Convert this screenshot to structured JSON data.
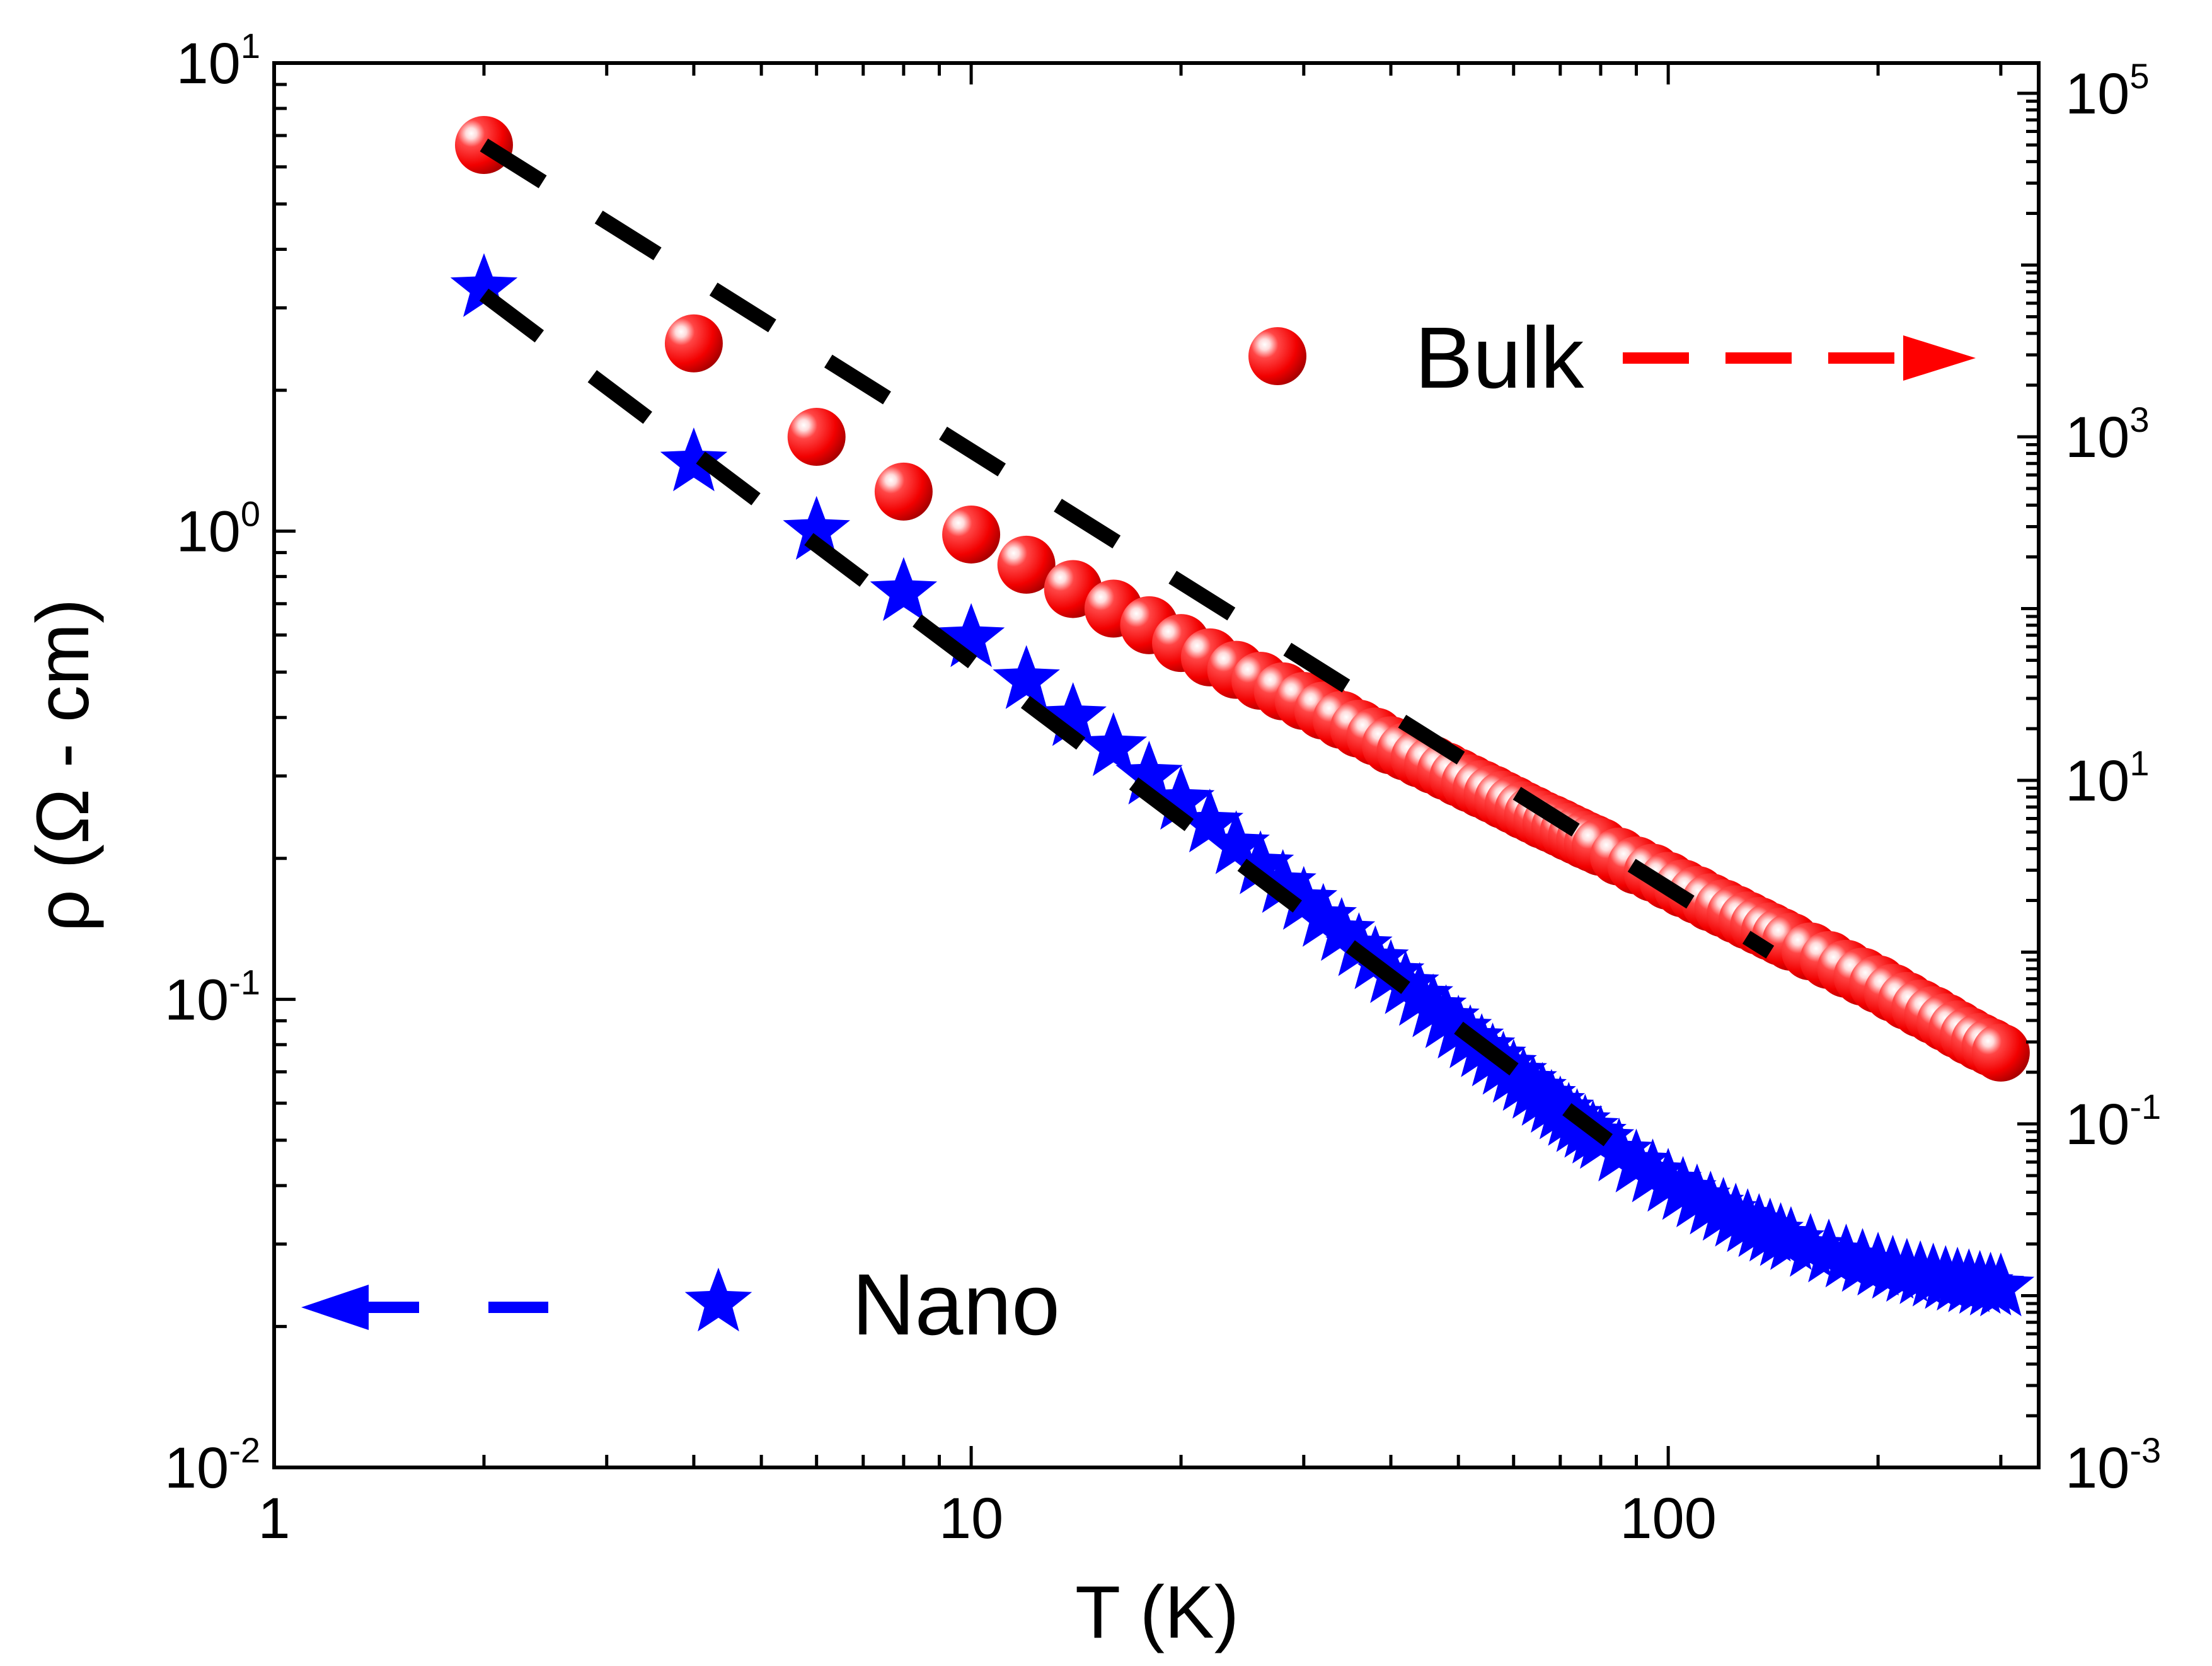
{
  "chart_data": {
    "type": "scatter",
    "xlabel": "T (K)",
    "ylabel_left": "ρ (Ω - cm)",
    "ylabel_right": "",
    "xscale": "log",
    "yscale_left": "log",
    "yscale_right": "log",
    "xlim": [
      1,
      340
    ],
    "ylim_left": [
      0.01,
      10
    ],
    "ylim_right": [
      0.001,
      150000
    ],
    "x_ticks": [
      {
        "value": 1,
        "label": "1"
      },
      {
        "value": 10,
        "label": "10"
      },
      {
        "value": 100,
        "label": "100"
      }
    ],
    "y_left_ticks": [
      {
        "value": 10,
        "base": "10",
        "exp": "1"
      },
      {
        "value": 1,
        "base": "10",
        "exp": "0"
      },
      {
        "value": 0.1,
        "base": "10",
        "exp": "-1"
      },
      {
        "value": 0.01,
        "base": "10",
        "exp": "-2"
      }
    ],
    "y_right_ticks": [
      {
        "value": 100000,
        "base": "10",
        "exp": "5"
      },
      {
        "value": 1000,
        "base": "10",
        "exp": "3"
      },
      {
        "value": 10,
        "base": "10",
        "exp": "1"
      },
      {
        "value": 0.1,
        "base": "10",
        "exp": "-1"
      },
      {
        "value": 0.001,
        "base": "10",
        "exp": "-3"
      }
    ],
    "series": [
      {
        "name": "Bulk",
        "axis": "right",
        "marker": "sphere",
        "color": "#ff0000",
        "x": [
          2,
          4,
          6,
          8,
          10,
          12,
          14,
          16,
          18,
          20,
          22,
          24,
          26,
          28,
          30,
          32,
          34,
          36,
          38,
          40,
          42,
          44,
          46,
          48,
          50,
          52,
          54,
          56,
          58,
          60,
          62,
          64,
          66,
          68,
          70,
          72,
          74,
          76,
          78,
          80,
          85,
          90,
          95,
          100,
          105,
          110,
          115,
          120,
          125,
          130,
          135,
          140,
          145,
          150,
          160,
          170,
          180,
          190,
          200,
          210,
          220,
          230,
          240,
          250,
          260,
          270,
          280,
          290,
          300
        ],
        "y": [
          50000,
          3500,
          1000,
          480,
          270,
          180,
          130,
          100,
          80,
          63,
          52,
          44,
          38,
          33,
          29,
          25.5,
          22.5,
          20,
          18,
          16,
          14.7,
          13.4,
          12.3,
          11.3,
          10.4,
          9.6,
          8.9,
          8.3,
          7.7,
          7.2,
          6.7,
          6.3,
          5.9,
          5.6,
          5.3,
          5.0,
          4.75,
          4.5,
          4.3,
          4.1,
          3.6,
          3.2,
          2.9,
          2.6,
          2.35,
          2.15,
          1.95,
          1.8,
          1.66,
          1.53,
          1.42,
          1.32,
          1.23,
          1.15,
          1.01,
          0.9,
          0.8,
          0.72,
          0.65,
          0.58,
          0.52,
          0.47,
          0.43,
          0.39,
          0.355,
          0.325,
          0.3,
          0.28,
          0.26
        ]
      },
      {
        "name": "Nano",
        "axis": "left",
        "marker": "star",
        "color": "#0000ff",
        "x": [
          2,
          4,
          6,
          8,
          10,
          12,
          14,
          16,
          18,
          20,
          22,
          24,
          26,
          28,
          30,
          32,
          34,
          36,
          38,
          40,
          42,
          44,
          46,
          48,
          50,
          52,
          54,
          56,
          58,
          60,
          62,
          64,
          66,
          68,
          70,
          72,
          74,
          76,
          78,
          80,
          85,
          90,
          95,
          100,
          105,
          110,
          115,
          120,
          125,
          130,
          135,
          140,
          145,
          150,
          160,
          170,
          180,
          190,
          200,
          210,
          220,
          230,
          240,
          250,
          260,
          270,
          280,
          290,
          300
        ],
        "y": [
          3.3,
          1.4,
          1.0,
          0.74,
          0.59,
          0.48,
          0.4,
          0.345,
          0.3,
          0.265,
          0.237,
          0.213,
          0.193,
          0.176,
          0.162,
          0.149,
          0.139,
          0.129,
          0.121,
          0.113,
          0.107,
          0.101,
          0.0955,
          0.0905,
          0.086,
          0.082,
          0.0785,
          0.075,
          0.072,
          0.0692,
          0.0665,
          0.064,
          0.0618,
          0.0597,
          0.0578,
          0.056,
          0.0543,
          0.0528,
          0.0513,
          0.05,
          0.047,
          0.0445,
          0.0424,
          0.0405,
          0.0389,
          0.0375,
          0.0362,
          0.0351,
          0.0341,
          0.0332,
          0.0324,
          0.0317,
          0.031,
          0.0304,
          0.0294,
          0.0286,
          0.0279,
          0.0273,
          0.0268,
          0.0264,
          0.026,
          0.0257,
          0.0254,
          0.0251,
          0.0249,
          0.0247,
          0.0245,
          0.0243,
          0.0242
        ]
      }
    ],
    "fits": [
      {
        "name": "Bulk fit",
        "axis": "right",
        "style": "dashed",
        "color": "#000000",
        "x": [
          2,
          140
        ],
        "y": [
          50000,
          1.0
        ]
      },
      {
        "name": "Nano fit",
        "axis": "left",
        "style": "dashed",
        "color": "#000000",
        "x": [
          2,
          82
        ],
        "y": [
          3.2,
          0.05
        ]
      }
    ],
    "legend": [
      {
        "series": "Bulk",
        "label": "Bulk",
        "arrow": "right",
        "color": "#ff0000"
      },
      {
        "series": "Nano",
        "label": "Nano",
        "arrow": "left",
        "color": "#0000ff"
      }
    ]
  }
}
